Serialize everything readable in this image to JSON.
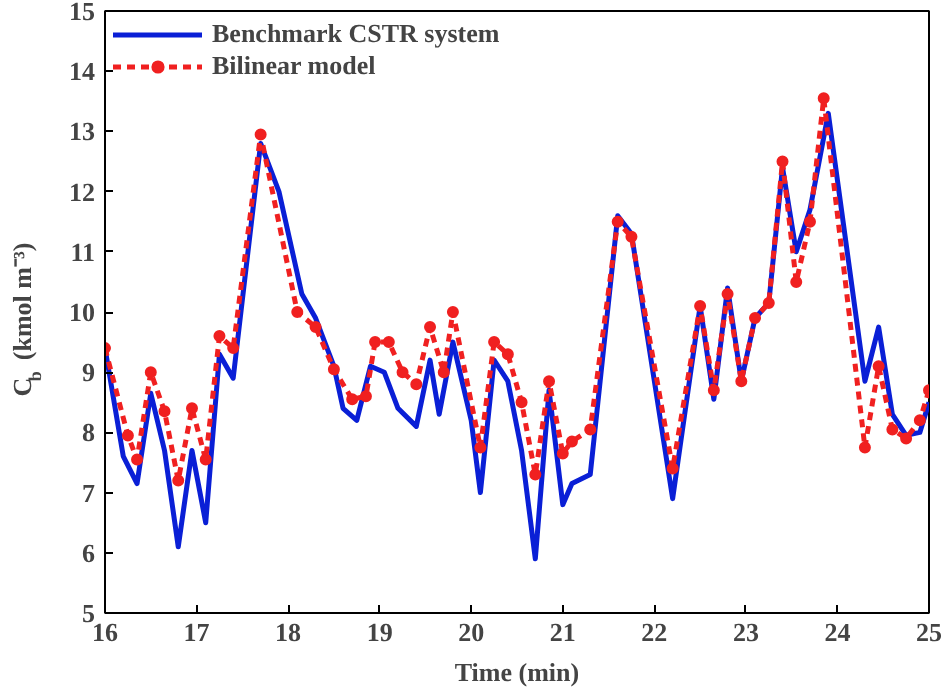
{
  "chart_data": {
    "type": "line",
    "xlabel": "Time (min)",
    "ylabel": "C$_{b}$ (kmol m⁻³)",
    "xlim": [
      16,
      25
    ],
    "ylim": [
      5,
      15
    ],
    "xticks": [
      16,
      17,
      18,
      19,
      20,
      21,
      22,
      23,
      24,
      25
    ],
    "yticks": [
      5,
      6,
      7,
      8,
      9,
      10,
      11,
      12,
      13,
      14,
      15
    ],
    "grid": false,
    "legend": "top left",
    "series": [
      {
        "name": "Benchmark CSTR system",
        "color": "#0a1fd6",
        "line_style": "solid",
        "marker": "none",
        "x": [
          16,
          16.2,
          16.35,
          16.5,
          16.65,
          16.8,
          16.95,
          17.1,
          17.25,
          17.4,
          17.7,
          17.9,
          18.15,
          18.3,
          18.5,
          18.6,
          18.75,
          18.9,
          19.05,
          19.2,
          19.4,
          19.55,
          19.65,
          19.8,
          20.0,
          20.1,
          20.25,
          20.4,
          20.55,
          20.7,
          20.85,
          21.0,
          21.1,
          21.3,
          21.6,
          21.75,
          22.2,
          22.5,
          22.65,
          22.8,
          22.95,
          23.1,
          23.25,
          23.4,
          23.55,
          23.7,
          23.9,
          24.3,
          24.45,
          24.6,
          24.75,
          24.9,
          25
        ],
        "values": [
          9.4,
          7.6,
          7.15,
          8.65,
          7.7,
          6.1,
          7.7,
          6.5,
          9.3,
          8.9,
          12.8,
          12.0,
          10.3,
          9.9,
          9.1,
          8.4,
          8.2,
          9.1,
          9.0,
          8.4,
          8.1,
          9.2,
          8.3,
          9.5,
          8.2,
          7.0,
          9.2,
          8.85,
          7.7,
          5.9,
          8.7,
          6.8,
          7.15,
          7.3,
          11.6,
          11.3,
          6.9,
          10.1,
          8.55,
          10.4,
          8.85,
          9.9,
          10.15,
          12.4,
          11.0,
          11.7,
          13.3,
          8.85,
          9.75,
          8.3,
          7.95,
          8.0,
          8.5
        ]
      },
      {
        "name": "Bilinear model",
        "color": "#f02020",
        "line_style": "dashed",
        "marker": "circle",
        "x": [
          16,
          16.25,
          16.35,
          16.5,
          16.65,
          16.8,
          16.95,
          17.1,
          17.25,
          17.4,
          17.7,
          18.1,
          18.3,
          18.5,
          18.7,
          18.85,
          18.95,
          19.1,
          19.25,
          19.4,
          19.55,
          19.7,
          19.8,
          20.1,
          20.25,
          20.4,
          20.55,
          20.7,
          20.85,
          21.0,
          21.1,
          21.3,
          21.6,
          21.75,
          22.2,
          22.5,
          22.65,
          22.8,
          22.95,
          23.1,
          23.25,
          23.4,
          23.55,
          23.7,
          23.85,
          24.3,
          24.45,
          24.6,
          24.75,
          24.9,
          25
        ],
        "values": [
          9.4,
          7.95,
          7.55,
          9.0,
          8.35,
          7.2,
          8.4,
          7.55,
          9.6,
          9.4,
          12.95,
          10.0,
          9.75,
          9.05,
          8.55,
          8.6,
          9.5,
          9.5,
          9.0,
          8.8,
          9.75,
          9.0,
          10.0,
          7.75,
          9.5,
          9.3,
          8.5,
          7.3,
          8.85,
          7.65,
          7.85,
          8.05,
          11.5,
          11.25,
          7.4,
          10.1,
          8.7,
          10.3,
          8.85,
          9.9,
          10.15,
          12.5,
          10.5,
          11.5,
          13.55,
          7.75,
          9.1,
          8.05,
          7.9,
          8.2,
          8.7
        ]
      }
    ]
  }
}
